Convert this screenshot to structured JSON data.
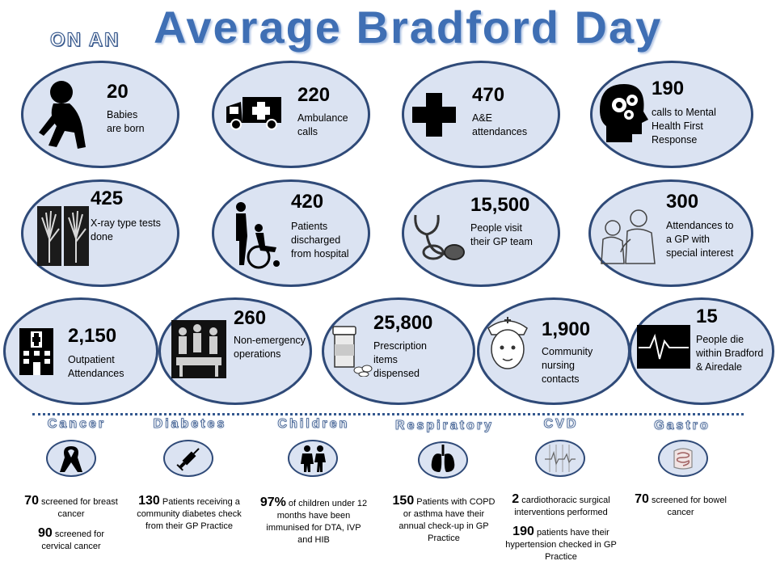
{
  "header": {
    "prefix": "ON AN",
    "title": "Average Bradford Day"
  },
  "stats": [
    {
      "value": "20",
      "label": "Babies are born",
      "icon": "baby-icon"
    },
    {
      "value": "220",
      "label": "Ambulance calls",
      "icon": "ambulance-icon"
    },
    {
      "value": "470",
      "label": "A&E attendances",
      "icon": "medical-cross-icon"
    },
    {
      "value": "190",
      "label": "calls to Mental Health First Response",
      "icon": "mental-health-head-icon"
    },
    {
      "value": "425",
      "label": "X-ray type tests done",
      "icon": "xray-hands-icon"
    },
    {
      "value": "420",
      "label": "Patients discharged from hospital",
      "icon": "wheelchair-icon"
    },
    {
      "value": "15,500",
      "label": "People visit their GP team",
      "icon": "stethoscope-icon"
    },
    {
      "value": "300",
      "label": "Attendances to a GP with special interest",
      "icon": "doctor-patient-icon"
    },
    {
      "value": "2,150",
      "label": "Outpatient Attendances",
      "icon": "hospital-building-icon"
    },
    {
      "value": "260",
      "label": "Non-emergency operations",
      "icon": "operating-theatre-icon"
    },
    {
      "value": "25,800",
      "label": "Prescription items dispensed",
      "icon": "pill-bottle-icon"
    },
    {
      "value": "1,900",
      "label": "Community nursing contacts",
      "icon": "nurse-icon"
    },
    {
      "value": "15",
      "label": "People die within Bradford & Airedale",
      "icon": "heart-monitor-icon"
    }
  ],
  "categories": [
    {
      "name": "Cancer",
      "icon": "awareness-ribbon-icon",
      "lines": [
        {
          "value": "70",
          "text": "screened for breast cancer"
        },
        {
          "value": "90",
          "text": "screened for cervical cancer"
        }
      ]
    },
    {
      "name": "Diabetes",
      "icon": "syringe-icon",
      "lines": [
        {
          "value": "130",
          "text": "Patients receiving a community diabetes check from their GP Practice"
        }
      ]
    },
    {
      "name": "Children",
      "icon": "children-icon",
      "lines": [
        {
          "value": "97%",
          "text": "of children under 12 months have been immunised for DTA, IVP and HIB"
        }
      ]
    },
    {
      "name": "Respiratory",
      "icon": "lungs-icon",
      "lines": [
        {
          "value": "150",
          "text": "Patients with COPD or asthma have their annual check-up in GP Practice"
        }
      ]
    },
    {
      "name": "CVD",
      "icon": "ecg-strip-icon",
      "lines": [
        {
          "value": "2",
          "text": "cardiothoracic surgical interventions performed"
        },
        {
          "value": "190",
          "text": "patients have their hypertension checked in GP Practice"
        }
      ]
    },
    {
      "name": "Gastro",
      "icon": "intestines-icon",
      "lines": [
        {
          "value": "70",
          "text": "screened for bowel cancer"
        }
      ]
    }
  ],
  "colors": {
    "oval_fill": "#dbe3f2",
    "oval_border": "#2f4a78",
    "title_blue": "#3f6fb4"
  }
}
